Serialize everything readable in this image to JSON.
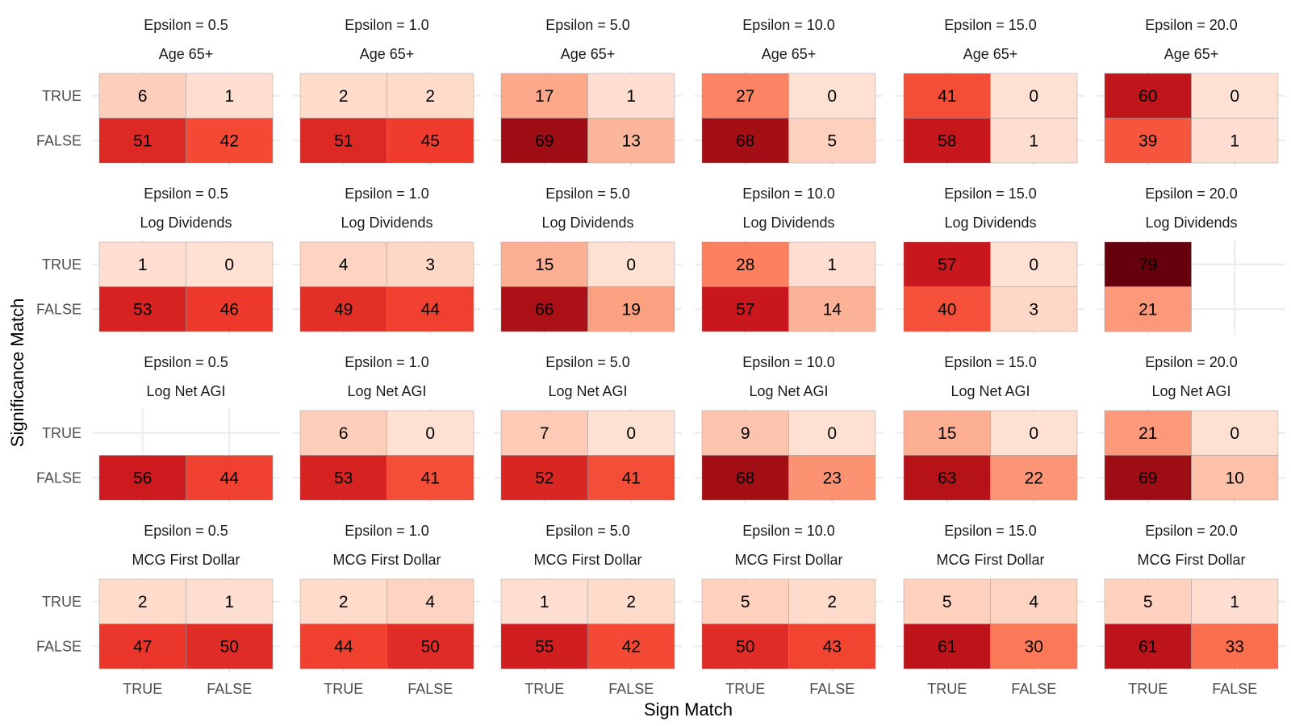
{
  "chart_data": {
    "type": "heatmap",
    "xlabel": "Sign Match",
    "ylabel": "Significance Match",
    "x_categories": [
      "TRUE",
      "FALSE"
    ],
    "y_categories": [
      "TRUE",
      "FALSE"
    ],
    "color_scale": "Reds",
    "color_range": [
      0,
      79
    ],
    "legend": "none",
    "grid": true,
    "panels": [
      {
        "epsilon_label": "Epsilon = 0.5",
        "variable": "Age 65+",
        "cells": [
          {
            "sign": "TRUE",
            "sig": "TRUE",
            "value": 6
          },
          {
            "sign": "FALSE",
            "sig": "TRUE",
            "value": 1
          },
          {
            "sign": "TRUE",
            "sig": "FALSE",
            "value": 51
          },
          {
            "sign": "FALSE",
            "sig": "FALSE",
            "value": 42
          }
        ]
      },
      {
        "epsilon_label": "Epsilon = 1.0",
        "variable": "Age 65+",
        "cells": [
          {
            "sign": "TRUE",
            "sig": "TRUE",
            "value": 2
          },
          {
            "sign": "FALSE",
            "sig": "TRUE",
            "value": 2
          },
          {
            "sign": "TRUE",
            "sig": "FALSE",
            "value": 51
          },
          {
            "sign": "FALSE",
            "sig": "FALSE",
            "value": 45
          }
        ]
      },
      {
        "epsilon_label": "Epsilon = 5.0",
        "variable": "Age 65+",
        "cells": [
          {
            "sign": "TRUE",
            "sig": "TRUE",
            "value": 17
          },
          {
            "sign": "FALSE",
            "sig": "TRUE",
            "value": 1
          },
          {
            "sign": "TRUE",
            "sig": "FALSE",
            "value": 69
          },
          {
            "sign": "FALSE",
            "sig": "FALSE",
            "value": 13
          }
        ]
      },
      {
        "epsilon_label": "Epsilon = 10.0",
        "variable": "Age 65+",
        "cells": [
          {
            "sign": "TRUE",
            "sig": "TRUE",
            "value": 27
          },
          {
            "sign": "FALSE",
            "sig": "TRUE",
            "value": 0
          },
          {
            "sign": "TRUE",
            "sig": "FALSE",
            "value": 68
          },
          {
            "sign": "FALSE",
            "sig": "FALSE",
            "value": 5
          }
        ]
      },
      {
        "epsilon_label": "Epsilon = 15.0",
        "variable": "Age 65+",
        "cells": [
          {
            "sign": "TRUE",
            "sig": "TRUE",
            "value": 41
          },
          {
            "sign": "FALSE",
            "sig": "TRUE",
            "value": 0
          },
          {
            "sign": "TRUE",
            "sig": "FALSE",
            "value": 58
          },
          {
            "sign": "FALSE",
            "sig": "FALSE",
            "value": 1
          }
        ]
      },
      {
        "epsilon_label": "Epsilon = 20.0",
        "variable": "Age 65+",
        "cells": [
          {
            "sign": "TRUE",
            "sig": "TRUE",
            "value": 60
          },
          {
            "sign": "FALSE",
            "sig": "TRUE",
            "value": 0
          },
          {
            "sign": "TRUE",
            "sig": "FALSE",
            "value": 39
          },
          {
            "sign": "FALSE",
            "sig": "FALSE",
            "value": 1
          }
        ]
      },
      {
        "epsilon_label": "Epsilon = 0.5",
        "variable": "Log Dividends",
        "cells": [
          {
            "sign": "TRUE",
            "sig": "TRUE",
            "value": 1
          },
          {
            "sign": "FALSE",
            "sig": "TRUE",
            "value": 0
          },
          {
            "sign": "TRUE",
            "sig": "FALSE",
            "value": 53
          },
          {
            "sign": "FALSE",
            "sig": "FALSE",
            "value": 46
          }
        ]
      },
      {
        "epsilon_label": "Epsilon = 1.0",
        "variable": "Log Dividends",
        "cells": [
          {
            "sign": "TRUE",
            "sig": "TRUE",
            "value": 4
          },
          {
            "sign": "FALSE",
            "sig": "TRUE",
            "value": 3
          },
          {
            "sign": "TRUE",
            "sig": "FALSE",
            "value": 49
          },
          {
            "sign": "FALSE",
            "sig": "FALSE",
            "value": 44
          }
        ]
      },
      {
        "epsilon_label": "Epsilon = 5.0",
        "variable": "Log Dividends",
        "cells": [
          {
            "sign": "TRUE",
            "sig": "TRUE",
            "value": 15
          },
          {
            "sign": "FALSE",
            "sig": "TRUE",
            "value": 0
          },
          {
            "sign": "TRUE",
            "sig": "FALSE",
            "value": 66
          },
          {
            "sign": "FALSE",
            "sig": "FALSE",
            "value": 19
          }
        ]
      },
      {
        "epsilon_label": "Epsilon = 10.0",
        "variable": "Log Dividends",
        "cells": [
          {
            "sign": "TRUE",
            "sig": "TRUE",
            "value": 28
          },
          {
            "sign": "FALSE",
            "sig": "TRUE",
            "value": 1
          },
          {
            "sign": "TRUE",
            "sig": "FALSE",
            "value": 57
          },
          {
            "sign": "FALSE",
            "sig": "FALSE",
            "value": 14
          }
        ]
      },
      {
        "epsilon_label": "Epsilon = 15.0",
        "variable": "Log Dividends",
        "cells": [
          {
            "sign": "TRUE",
            "sig": "TRUE",
            "value": 57
          },
          {
            "sign": "FALSE",
            "sig": "TRUE",
            "value": 0
          },
          {
            "sign": "TRUE",
            "sig": "FALSE",
            "value": 40
          },
          {
            "sign": "FALSE",
            "sig": "FALSE",
            "value": 3
          }
        ]
      },
      {
        "epsilon_label": "Epsilon = 20.0",
        "variable": "Log Dividends",
        "cells": [
          {
            "sign": "TRUE",
            "sig": "TRUE",
            "value": 79
          },
          {
            "sign": "TRUE",
            "sig": "FALSE",
            "value": 21
          }
        ]
      },
      {
        "epsilon_label": "Epsilon = 0.5",
        "variable": "Log Net AGI",
        "cells": [
          {
            "sign": "TRUE",
            "sig": "FALSE",
            "value": 56
          },
          {
            "sign": "FALSE",
            "sig": "FALSE",
            "value": 44
          }
        ]
      },
      {
        "epsilon_label": "Epsilon = 1.0",
        "variable": "Log Net AGI",
        "cells": [
          {
            "sign": "TRUE",
            "sig": "TRUE",
            "value": 6
          },
          {
            "sign": "FALSE",
            "sig": "TRUE",
            "value": 0
          },
          {
            "sign": "TRUE",
            "sig": "FALSE",
            "value": 53
          },
          {
            "sign": "FALSE",
            "sig": "FALSE",
            "value": 41
          }
        ]
      },
      {
        "epsilon_label": "Epsilon = 5.0",
        "variable": "Log Net AGI",
        "cells": [
          {
            "sign": "TRUE",
            "sig": "TRUE",
            "value": 7
          },
          {
            "sign": "FALSE",
            "sig": "TRUE",
            "value": 0
          },
          {
            "sign": "TRUE",
            "sig": "FALSE",
            "value": 52
          },
          {
            "sign": "FALSE",
            "sig": "FALSE",
            "value": 41
          }
        ]
      },
      {
        "epsilon_label": "Epsilon = 10.0",
        "variable": "Log Net AGI",
        "cells": [
          {
            "sign": "TRUE",
            "sig": "TRUE",
            "value": 9
          },
          {
            "sign": "FALSE",
            "sig": "TRUE",
            "value": 0
          },
          {
            "sign": "TRUE",
            "sig": "FALSE",
            "value": 68
          },
          {
            "sign": "FALSE",
            "sig": "FALSE",
            "value": 23
          }
        ]
      },
      {
        "epsilon_label": "Epsilon = 15.0",
        "variable": "Log Net AGI",
        "cells": [
          {
            "sign": "TRUE",
            "sig": "TRUE",
            "value": 15
          },
          {
            "sign": "FALSE",
            "sig": "TRUE",
            "value": 0
          },
          {
            "sign": "TRUE",
            "sig": "FALSE",
            "value": 63
          },
          {
            "sign": "FALSE",
            "sig": "FALSE",
            "value": 22
          }
        ]
      },
      {
        "epsilon_label": "Epsilon = 20.0",
        "variable": "Log Net AGI",
        "cells": [
          {
            "sign": "TRUE",
            "sig": "TRUE",
            "value": 21
          },
          {
            "sign": "FALSE",
            "sig": "TRUE",
            "value": 0
          },
          {
            "sign": "TRUE",
            "sig": "FALSE",
            "value": 69
          },
          {
            "sign": "FALSE",
            "sig": "FALSE",
            "value": 10
          }
        ]
      },
      {
        "epsilon_label": "Epsilon = 0.5",
        "variable": "MCG First Dollar",
        "cells": [
          {
            "sign": "TRUE",
            "sig": "TRUE",
            "value": 2
          },
          {
            "sign": "FALSE",
            "sig": "TRUE",
            "value": 1
          },
          {
            "sign": "TRUE",
            "sig": "FALSE",
            "value": 47
          },
          {
            "sign": "FALSE",
            "sig": "FALSE",
            "value": 50
          }
        ]
      },
      {
        "epsilon_label": "Epsilon = 1.0",
        "variable": "MCG First Dollar",
        "cells": [
          {
            "sign": "TRUE",
            "sig": "TRUE",
            "value": 2
          },
          {
            "sign": "FALSE",
            "sig": "TRUE",
            "value": 4
          },
          {
            "sign": "TRUE",
            "sig": "FALSE",
            "value": 44
          },
          {
            "sign": "FALSE",
            "sig": "FALSE",
            "value": 50
          }
        ]
      },
      {
        "epsilon_label": "Epsilon = 5.0",
        "variable": "MCG First Dollar",
        "cells": [
          {
            "sign": "TRUE",
            "sig": "TRUE",
            "value": 1
          },
          {
            "sign": "FALSE",
            "sig": "TRUE",
            "value": 2
          },
          {
            "sign": "TRUE",
            "sig": "FALSE",
            "value": 55
          },
          {
            "sign": "FALSE",
            "sig": "FALSE",
            "value": 42
          }
        ]
      },
      {
        "epsilon_label": "Epsilon = 10.0",
        "variable": "MCG First Dollar",
        "cells": [
          {
            "sign": "TRUE",
            "sig": "TRUE",
            "value": 5
          },
          {
            "sign": "FALSE",
            "sig": "TRUE",
            "value": 2
          },
          {
            "sign": "TRUE",
            "sig": "FALSE",
            "value": 50
          },
          {
            "sign": "FALSE",
            "sig": "FALSE",
            "value": 43
          }
        ]
      },
      {
        "epsilon_label": "Epsilon = 15.0",
        "variable": "MCG First Dollar",
        "cells": [
          {
            "sign": "TRUE",
            "sig": "TRUE",
            "value": 5
          },
          {
            "sign": "FALSE",
            "sig": "TRUE",
            "value": 4
          },
          {
            "sign": "TRUE",
            "sig": "FALSE",
            "value": 61
          },
          {
            "sign": "FALSE",
            "sig": "FALSE",
            "value": 30
          }
        ]
      },
      {
        "epsilon_label": "Epsilon = 20.0",
        "variable": "MCG First Dollar",
        "cells": [
          {
            "sign": "TRUE",
            "sig": "TRUE",
            "value": 5
          },
          {
            "sign": "FALSE",
            "sig": "TRUE",
            "value": 1
          },
          {
            "sign": "TRUE",
            "sig": "FALSE",
            "value": 61
          },
          {
            "sign": "FALSE",
            "sig": "FALSE",
            "value": 33
          }
        ]
      }
    ]
  }
}
